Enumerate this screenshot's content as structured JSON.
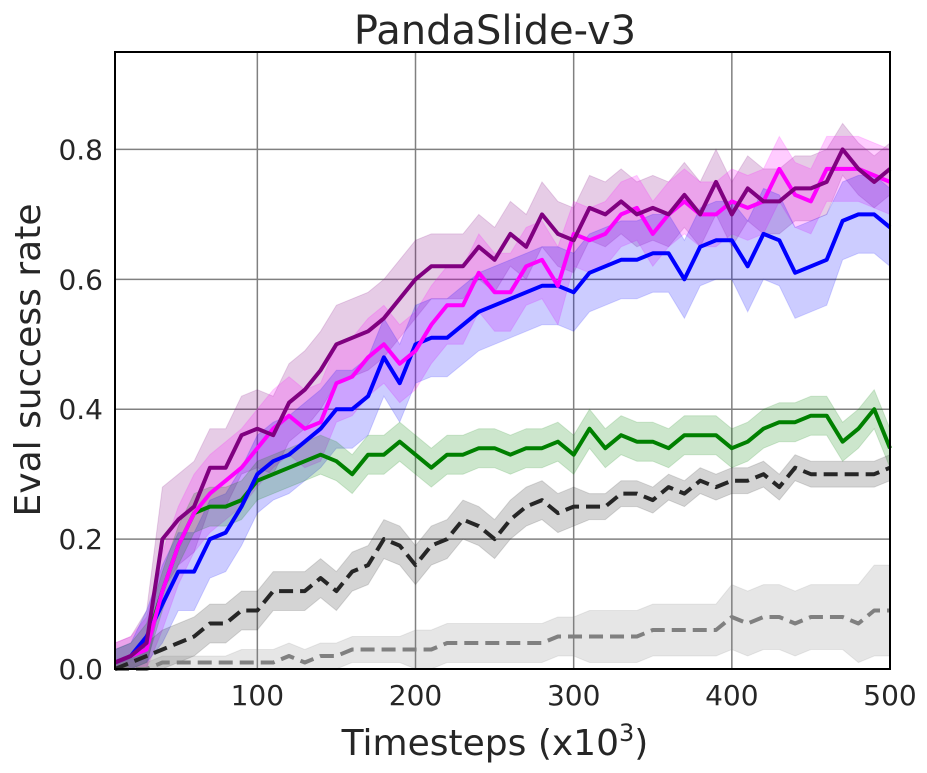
{
  "chart_data": {
    "type": "line",
    "title": "PandaSlide-v3",
    "xlabel": "Timesteps (x10",
    "xlabel_sup": "3",
    "xlabel_close": ")",
    "ylabel": "Eval success rate",
    "xlim": [
      10,
      500
    ],
    "ylim": [
      0,
      0.95
    ],
    "xticks": [
      100,
      200,
      300,
      400,
      500
    ],
    "xtick_labels": [
      "100",
      "200",
      "300",
      "400",
      "500"
    ],
    "yticks": [
      0.0,
      0.2,
      0.4,
      0.6,
      0.8
    ],
    "ytick_labels": [
      "0.0",
      "0.2",
      "0.4",
      "0.6",
      "0.8"
    ],
    "grid": true,
    "legend": "none",
    "x": [
      10,
      20,
      30,
      40,
      50,
      60,
      70,
      80,
      90,
      100,
      110,
      120,
      130,
      140,
      150,
      160,
      170,
      180,
      190,
      200,
      210,
      220,
      230,
      240,
      250,
      260,
      270,
      280,
      290,
      300,
      310,
      320,
      330,
      340,
      350,
      360,
      370,
      380,
      390,
      400,
      410,
      420,
      430,
      440,
      450,
      460,
      470,
      480,
      490,
      500
    ],
    "series": [
      {
        "color": "#800080",
        "dash": "solid",
        "band_opacity": 0.2,
        "values": [
          0.01,
          0.02,
          0.04,
          0.2,
          0.23,
          0.25,
          0.31,
          0.31,
          0.36,
          0.37,
          0.36,
          0.41,
          0.43,
          0.46,
          0.5,
          0.51,
          0.52,
          0.54,
          0.57,
          0.6,
          0.62,
          0.62,
          0.62,
          0.65,
          0.63,
          0.67,
          0.65,
          0.7,
          0.67,
          0.66,
          0.71,
          0.7,
          0.72,
          0.7,
          0.71,
          0.7,
          0.73,
          0.7,
          0.75,
          0.7,
          0.74,
          0.72,
          0.72,
          0.74,
          0.74,
          0.75,
          0.8,
          0.77,
          0.75,
          0.77
        ],
        "band": [
          0.03,
          0.03,
          0.05,
          0.08,
          0.07,
          0.07,
          0.06,
          0.06,
          0.06,
          0.06,
          0.06,
          0.06,
          0.06,
          0.06,
          0.06,
          0.06,
          0.06,
          0.06,
          0.06,
          0.06,
          0.05,
          0.05,
          0.05,
          0.05,
          0.05,
          0.05,
          0.05,
          0.05,
          0.05,
          0.05,
          0.05,
          0.05,
          0.05,
          0.05,
          0.05,
          0.05,
          0.05,
          0.05,
          0.05,
          0.05,
          0.05,
          0.05,
          0.05,
          0.05,
          0.05,
          0.05,
          0.04,
          0.04,
          0.04,
          0.04
        ]
      },
      {
        "color": "#ff00ff",
        "dash": "solid",
        "band_opacity": 0.2,
        "values": [
          0.01,
          0.02,
          0.03,
          0.12,
          0.19,
          0.24,
          0.27,
          0.29,
          0.31,
          0.34,
          0.37,
          0.39,
          0.37,
          0.38,
          0.44,
          0.45,
          0.48,
          0.5,
          0.47,
          0.49,
          0.53,
          0.56,
          0.56,
          0.61,
          0.58,
          0.58,
          0.62,
          0.63,
          0.59,
          0.67,
          0.66,
          0.67,
          0.7,
          0.71,
          0.67,
          0.7,
          0.72,
          0.7,
          0.7,
          0.72,
          0.71,
          0.72,
          0.77,
          0.73,
          0.72,
          0.77,
          0.77,
          0.77,
          0.76,
          0.75
        ],
        "band": [
          0.03,
          0.03,
          0.05,
          0.06,
          0.06,
          0.06,
          0.06,
          0.06,
          0.06,
          0.06,
          0.06,
          0.06,
          0.06,
          0.06,
          0.06,
          0.06,
          0.06,
          0.06,
          0.06,
          0.06,
          0.06,
          0.06,
          0.06,
          0.06,
          0.06,
          0.06,
          0.06,
          0.06,
          0.06,
          0.05,
          0.05,
          0.05,
          0.05,
          0.05,
          0.05,
          0.05,
          0.05,
          0.05,
          0.05,
          0.05,
          0.05,
          0.05,
          0.05,
          0.05,
          0.05,
          0.05,
          0.05,
          0.05,
          0.05,
          0.05
        ]
      },
      {
        "color": "#0000ff",
        "dash": "solid",
        "band_opacity": 0.2,
        "values": [
          0.01,
          0.02,
          0.05,
          0.1,
          0.15,
          0.15,
          0.2,
          0.21,
          0.25,
          0.3,
          0.32,
          0.33,
          0.35,
          0.37,
          0.4,
          0.4,
          0.42,
          0.48,
          0.44,
          0.5,
          0.51,
          0.51,
          0.53,
          0.55,
          0.56,
          0.57,
          0.58,
          0.59,
          0.59,
          0.58,
          0.61,
          0.62,
          0.63,
          0.63,
          0.64,
          0.64,
          0.6,
          0.65,
          0.66,
          0.66,
          0.62,
          0.67,
          0.66,
          0.61,
          0.62,
          0.63,
          0.69,
          0.7,
          0.7,
          0.68
        ],
        "band": [
          0.02,
          0.02,
          0.04,
          0.06,
          0.06,
          0.06,
          0.06,
          0.06,
          0.06,
          0.06,
          0.06,
          0.06,
          0.06,
          0.06,
          0.06,
          0.06,
          0.06,
          0.06,
          0.06,
          0.06,
          0.06,
          0.06,
          0.06,
          0.06,
          0.06,
          0.06,
          0.06,
          0.06,
          0.06,
          0.06,
          0.06,
          0.06,
          0.06,
          0.06,
          0.06,
          0.06,
          0.06,
          0.06,
          0.06,
          0.06,
          0.07,
          0.07,
          0.07,
          0.07,
          0.07,
          0.07,
          0.06,
          0.06,
          0.06,
          0.06
        ]
      },
      {
        "color": "#008000",
        "dash": "solid",
        "band_opacity": 0.2,
        "values": [
          0.01,
          0.02,
          0.04,
          0.12,
          0.19,
          0.24,
          0.25,
          0.25,
          0.26,
          0.29,
          0.3,
          0.31,
          0.32,
          0.33,
          0.32,
          0.3,
          0.33,
          0.33,
          0.35,
          0.33,
          0.31,
          0.33,
          0.33,
          0.34,
          0.34,
          0.33,
          0.34,
          0.34,
          0.35,
          0.33,
          0.37,
          0.34,
          0.36,
          0.35,
          0.35,
          0.34,
          0.36,
          0.36,
          0.36,
          0.34,
          0.35,
          0.37,
          0.38,
          0.38,
          0.39,
          0.39,
          0.35,
          0.37,
          0.4,
          0.34
        ],
        "band": [
          0.02,
          0.02,
          0.03,
          0.03,
          0.03,
          0.03,
          0.03,
          0.03,
          0.03,
          0.03,
          0.03,
          0.03,
          0.03,
          0.03,
          0.03,
          0.03,
          0.03,
          0.03,
          0.03,
          0.03,
          0.03,
          0.03,
          0.03,
          0.03,
          0.03,
          0.03,
          0.03,
          0.03,
          0.03,
          0.03,
          0.03,
          0.03,
          0.03,
          0.03,
          0.03,
          0.03,
          0.03,
          0.03,
          0.03,
          0.03,
          0.03,
          0.03,
          0.03,
          0.03,
          0.03,
          0.03,
          0.03,
          0.03,
          0.03,
          0.03
        ]
      },
      {
        "color": "#262626",
        "dash": "dashed",
        "band_opacity": 0.2,
        "values": [
          0.0,
          0.01,
          0.02,
          0.03,
          0.04,
          0.05,
          0.07,
          0.07,
          0.09,
          0.09,
          0.12,
          0.12,
          0.12,
          0.14,
          0.12,
          0.15,
          0.16,
          0.2,
          0.19,
          0.16,
          0.19,
          0.2,
          0.23,
          0.22,
          0.2,
          0.23,
          0.25,
          0.26,
          0.24,
          0.25,
          0.25,
          0.25,
          0.27,
          0.27,
          0.26,
          0.28,
          0.27,
          0.29,
          0.28,
          0.29,
          0.29,
          0.3,
          0.28,
          0.31,
          0.3,
          0.3,
          0.3,
          0.3,
          0.3,
          0.31
        ],
        "band": [
          0.01,
          0.01,
          0.02,
          0.03,
          0.03,
          0.03,
          0.03,
          0.03,
          0.03,
          0.03,
          0.03,
          0.03,
          0.03,
          0.03,
          0.03,
          0.03,
          0.03,
          0.03,
          0.03,
          0.03,
          0.03,
          0.03,
          0.03,
          0.03,
          0.03,
          0.03,
          0.03,
          0.03,
          0.03,
          0.03,
          0.02,
          0.02,
          0.02,
          0.02,
          0.02,
          0.02,
          0.02,
          0.02,
          0.02,
          0.02,
          0.02,
          0.02,
          0.02,
          0.02,
          0.02,
          0.02,
          0.02,
          0.02,
          0.02,
          0.02
        ]
      },
      {
        "color": "#808080",
        "dash": "dashed",
        "band_opacity": 0.2,
        "values": [
          0.0,
          0.0,
          0.0,
          0.01,
          0.01,
          0.01,
          0.01,
          0.01,
          0.01,
          0.01,
          0.01,
          0.02,
          0.01,
          0.02,
          0.02,
          0.03,
          0.03,
          0.03,
          0.03,
          0.03,
          0.03,
          0.04,
          0.04,
          0.04,
          0.04,
          0.04,
          0.04,
          0.04,
          0.05,
          0.05,
          0.05,
          0.05,
          0.05,
          0.05,
          0.06,
          0.06,
          0.06,
          0.06,
          0.06,
          0.08,
          0.07,
          0.08,
          0.08,
          0.07,
          0.08,
          0.08,
          0.08,
          0.07,
          0.09,
          0.09
        ],
        "band": [
          0.01,
          0.01,
          0.01,
          0.01,
          0.01,
          0.01,
          0.01,
          0.01,
          0.02,
          0.02,
          0.02,
          0.02,
          0.02,
          0.02,
          0.02,
          0.02,
          0.02,
          0.02,
          0.02,
          0.03,
          0.03,
          0.03,
          0.03,
          0.03,
          0.03,
          0.03,
          0.03,
          0.03,
          0.03,
          0.03,
          0.04,
          0.04,
          0.04,
          0.04,
          0.04,
          0.04,
          0.04,
          0.04,
          0.04,
          0.05,
          0.05,
          0.05,
          0.05,
          0.05,
          0.05,
          0.05,
          0.05,
          0.06,
          0.07,
          0.07
        ]
      }
    ]
  }
}
